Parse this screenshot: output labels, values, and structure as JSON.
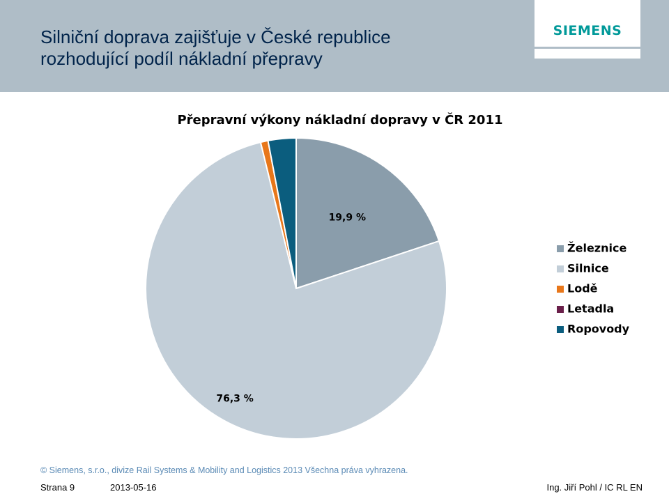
{
  "slide": {
    "title_line1": "Silniční doprava zajišťuje v České republice",
    "title_line2": "rozhodující podíl nákladní přepravy",
    "logo": "SIEMENS"
  },
  "chart_data": {
    "type": "pie",
    "title": "Přepravní výkony nákladní dopravy v ČR 2011",
    "legend_position": "right",
    "slices": [
      {
        "name": "Železnice",
        "value": 19.9,
        "label": "19,9 %",
        "color": "#8a9dab"
      },
      {
        "name": "Silnice",
        "value": 76.3,
        "label": "76,3 %",
        "color": "#c2ced8"
      },
      {
        "name": "Lodě",
        "value": 0.8,
        "label": "",
        "color": "#e8771a"
      },
      {
        "name": "Letadla",
        "value": 0.0,
        "label": "",
        "color": "#6a1f4a"
      },
      {
        "name": "Ropovody",
        "value": 3.0,
        "label": "",
        "color": "#0b5d7e"
      }
    ]
  },
  "footer": {
    "copyright": "© Siemens, s.r.o., divize Rail Systems & Mobility and Logistics  2013  Všechna práva vyhrazena.",
    "page": "Strana 9",
    "date": "2013-05-16",
    "author": "Ing. Jiří Pohl / IC RL EN"
  }
}
